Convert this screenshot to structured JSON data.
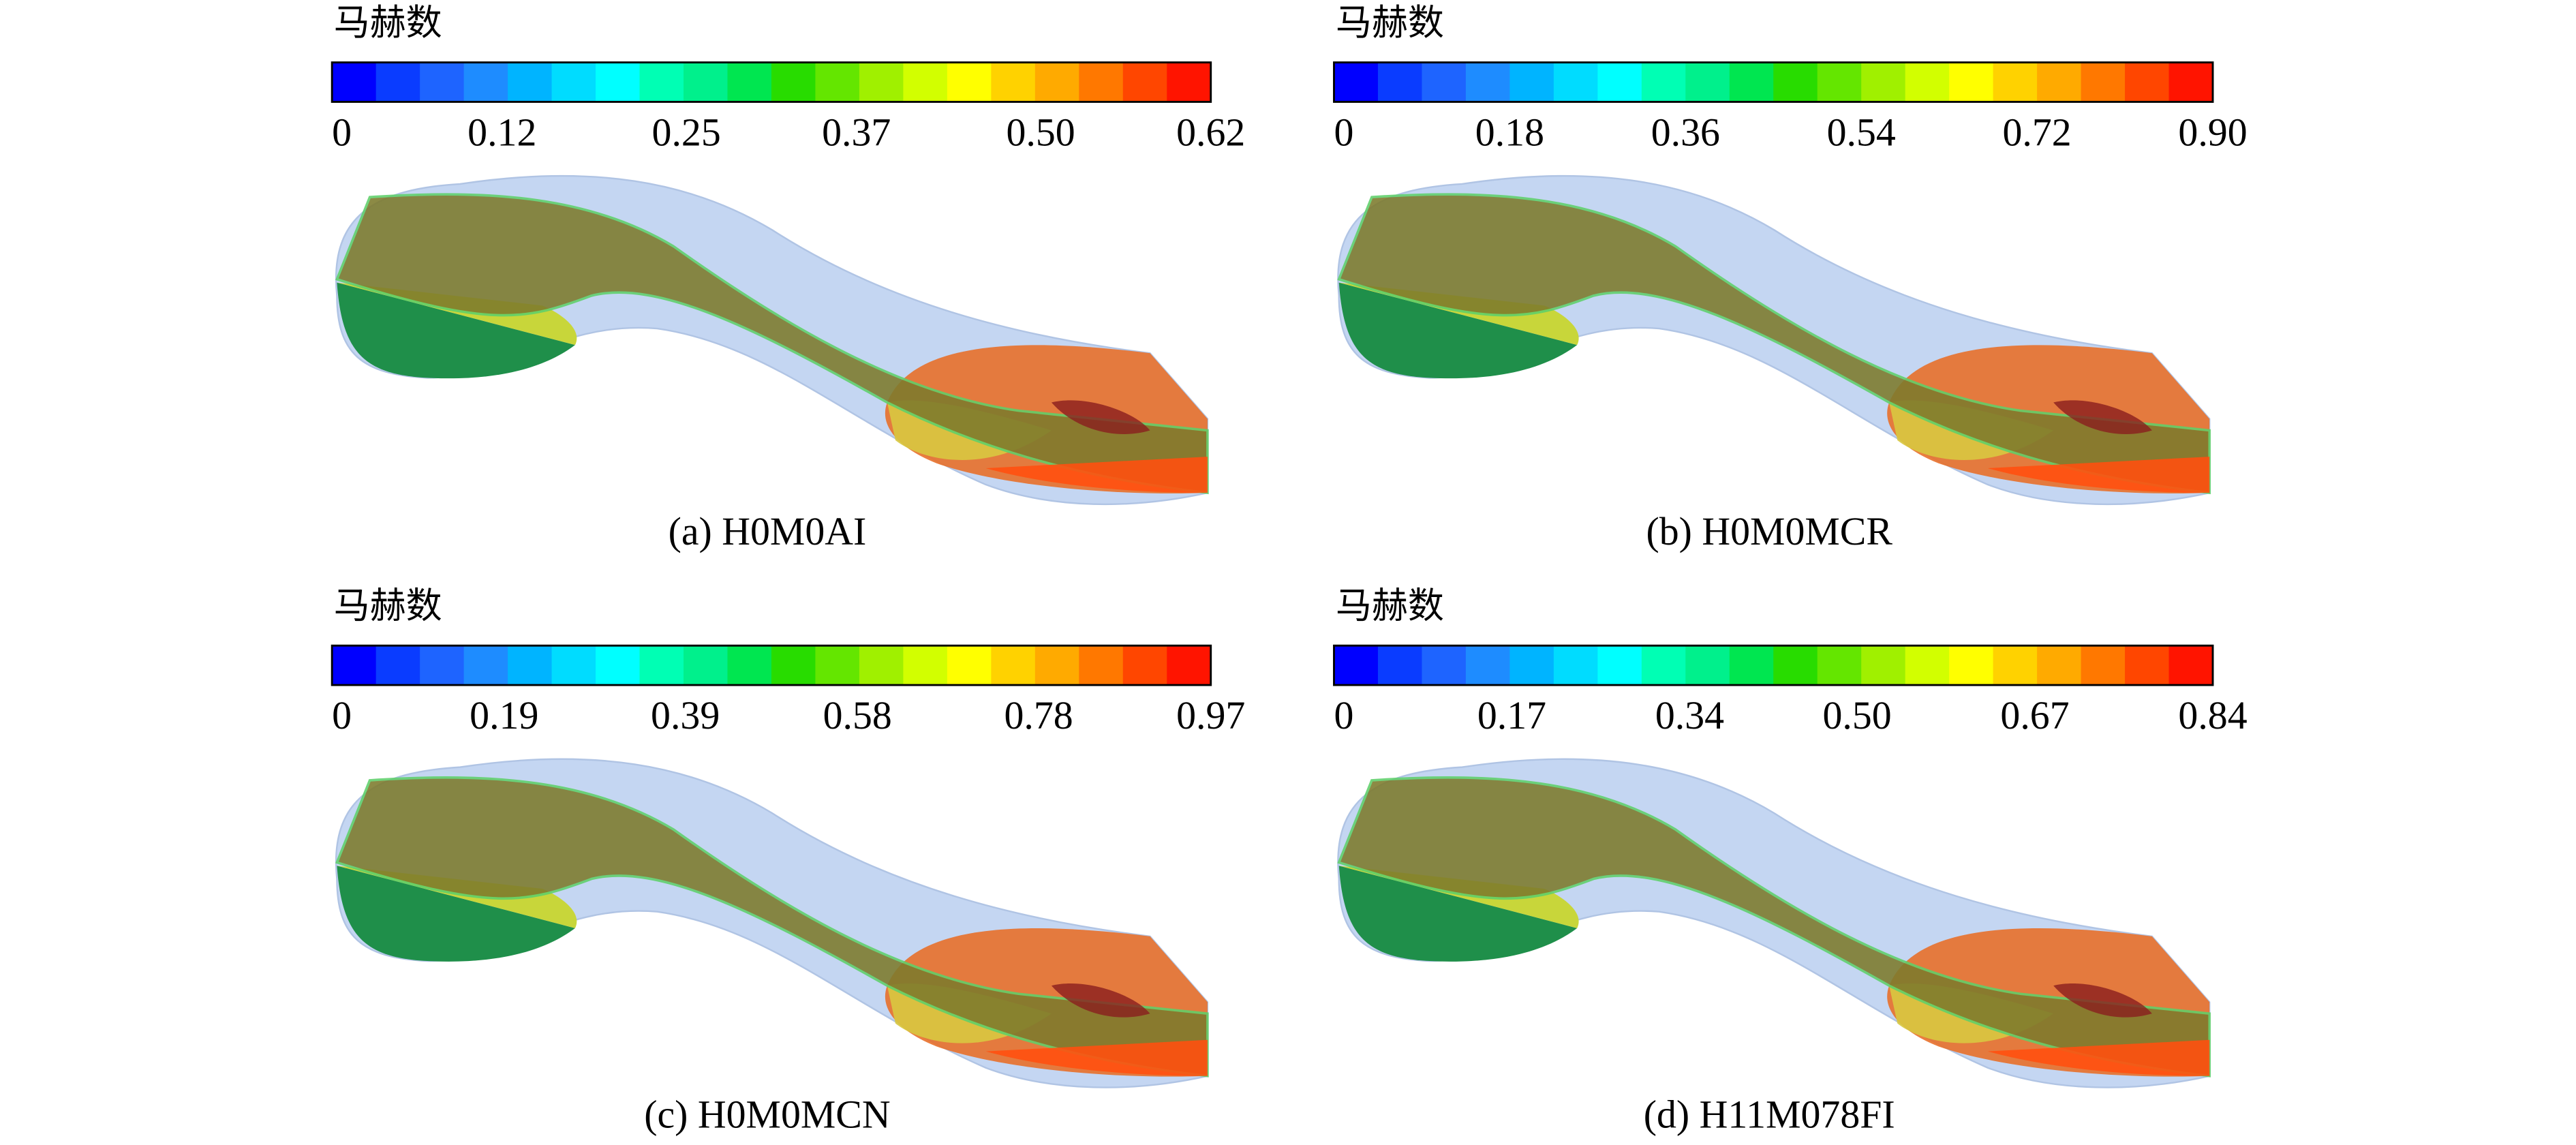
{
  "chart_data": [
    {
      "type": "contour",
      "title": "马赫数",
      "caption": "(a) H0M0AI",
      "zlim": [
        0,
        0.62
      ],
      "ticks": [
        0,
        0.12,
        0.25,
        0.37,
        {
          "value": 0.5,
          "label": "0.50"
        },
        0.62
      ],
      "colors": [
        "#0000ff",
        "#0a3cff",
        "#1e64ff",
        "#1e8cff",
        "#00b4ff",
        "#00dcff",
        "#00ffff",
        "#00ffb4",
        "#00f08c",
        "#00e650",
        "#28dc00",
        "#64e600",
        "#a0f000",
        "#d2ff00",
        "#ffff00",
        "#ffd200",
        "#ffaa00",
        "#ff7800",
        "#ff4600",
        "#ff1400"
      ]
    },
    {
      "type": "contour",
      "title": "马赫数",
      "caption": "(b) H0M0MCR",
      "zlim": [
        0,
        0.9
      ],
      "ticks": [
        0,
        0.18,
        0.36,
        0.54,
        0.72,
        {
          "value": 0.9,
          "label": "0.90"
        }
      ],
      "colors": [
        "#0000ff",
        "#0a3cff",
        "#1e64ff",
        "#1e8cff",
        "#00b4ff",
        "#00dcff",
        "#00ffff",
        "#00ffb4",
        "#00f08c",
        "#00e650",
        "#28dc00",
        "#64e600",
        "#a0f000",
        "#d2ff00",
        "#ffff00",
        "#ffd200",
        "#ffaa00",
        "#ff7800",
        "#ff4600",
        "#ff1400"
      ]
    },
    {
      "type": "contour",
      "title": "马赫数",
      "caption": "(c) H0M0MCN",
      "zlim": [
        0,
        0.97
      ],
      "ticks": [
        0,
        0.19,
        0.39,
        0.58,
        0.78,
        0.97
      ],
      "colors": [
        "#0000ff",
        "#0a3cff",
        "#1e64ff",
        "#1e8cff",
        "#00b4ff",
        "#00dcff",
        "#00ffff",
        "#00ffb4",
        "#00f08c",
        "#00e650",
        "#28dc00",
        "#64e600",
        "#a0f000",
        "#d2ff00",
        "#ffff00",
        "#ffd200",
        "#ffaa00",
        "#ff7800",
        "#ff4600",
        "#ff1400"
      ]
    },
    {
      "type": "contour",
      "title": "马赫数",
      "caption": "(d) H11M078FI",
      "zlim": [
        0,
        0.84
      ],
      "ticks": [
        0,
        0.17,
        0.34,
        {
          "value": 0.5,
          "label": "0.50"
        },
        0.67,
        0.84
      ],
      "colors": [
        "#0000ff",
        "#0a3cff",
        "#1e64ff",
        "#1e8cff",
        "#00b4ff",
        "#00dcff",
        "#00ffff",
        "#00ffb4",
        "#00f08c",
        "#00e650",
        "#28dc00",
        "#64e600",
        "#a0f000",
        "#d2ff00",
        "#ffff00",
        "#ffd200",
        "#ffaa00",
        "#ff7800",
        "#ff4600",
        "#ff1400"
      ]
    }
  ]
}
